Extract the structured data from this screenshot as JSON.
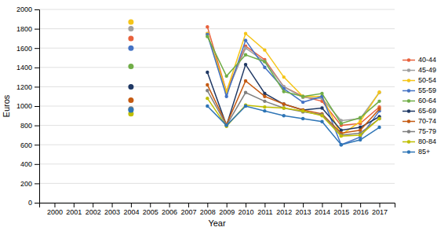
{
  "chart_data": {
    "type": "line",
    "xlabel": "Year",
    "ylabel": "Euros",
    "x": [
      2004,
      2005,
      2006,
      2007,
      2008,
      2009,
      2010,
      2011,
      2012,
      2013,
      2014,
      2015,
      2016,
      2017
    ],
    "series": [
      {
        "name": "40-44",
        "color": "#e8613c",
        "values": [
          1700,
          null,
          null,
          null,
          1820,
          1150,
          1620,
          1480,
          1200,
          1100,
          1050,
          800,
          820,
          990
        ]
      },
      {
        "name": "45-49",
        "color": "#a0a0a0",
        "values": [
          1800,
          null,
          null,
          null,
          1750,
          1130,
          1600,
          1460,
          1200,
          1090,
          1080,
          850,
          870,
          1140
        ]
      },
      {
        "name": "50-54",
        "color": "#f5c518",
        "values": [
          1870,
          null,
          null,
          null,
          1750,
          1150,
          1750,
          1580,
          1300,
          1100,
          1100,
          700,
          840,
          1145
        ]
      },
      {
        "name": "55-59",
        "color": "#4472c4",
        "values": [
          1600,
          null,
          null,
          null,
          1740,
          1100,
          1680,
          1400,
          1180,
          1040,
          1100,
          600,
          680,
          950
        ]
      },
      {
        "name": "60-64",
        "color": "#70ad47",
        "values": [
          1410,
          null,
          null,
          null,
          1720,
          1310,
          1530,
          1460,
          1150,
          1100,
          1130,
          820,
          880,
          1050
        ]
      },
      {
        "name": "65-69",
        "color": "#1f3864",
        "values": [
          1200,
          null,
          null,
          null,
          1350,
          800,
          1430,
          1130,
          1020,
          960,
          980,
          750,
          780,
          890
        ]
      },
      {
        "name": "70-74",
        "color": "#c55a11",
        "values": [
          1060,
          null,
          null,
          null,
          1220,
          810,
          1260,
          1100,
          1020,
          960,
          920,
          720,
          750,
          970
        ]
      },
      {
        "name": "75-79",
        "color": "#7f7f7f",
        "values": [
          970,
          null,
          null,
          null,
          1160,
          800,
          1140,
          1050,
          980,
          940,
          910,
          700,
          720,
          870
        ]
      },
      {
        "name": "80-84",
        "color": "#bfbf00",
        "values": [
          920,
          null,
          null,
          null,
          1080,
          790,
          1010,
          990,
          980,
          950,
          900,
          690,
          700,
          870
        ]
      },
      {
        "name": "85+",
        "color": "#2e75b6",
        "values": [
          960,
          null,
          null,
          null,
          1000,
          800,
          1000,
          950,
          900,
          870,
          840,
          600,
          650,
          780
        ]
      }
    ],
    "xlim": [
      1999.2,
      2017.8
    ],
    "xticks": [
      2000,
      2001,
      2002,
      2003,
      2004,
      2005,
      2006,
      2007,
      2008,
      2009,
      2010,
      2011,
      2012,
      2013,
      2014,
      2015,
      2016,
      2017
    ],
    "ylim": [
      0,
      2000
    ],
    "yticks": [
      0,
      200,
      400,
      600,
      800,
      1000,
      1200,
      1400,
      1600,
      1800,
      2000
    ],
    "grid": true,
    "legend": "right",
    "marker": "circle"
  }
}
